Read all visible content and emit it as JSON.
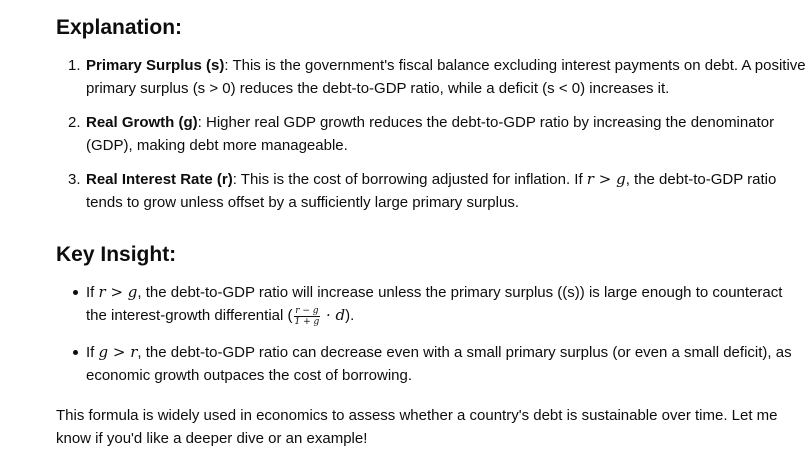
{
  "explanation": {
    "heading": "Explanation:",
    "items": [
      {
        "number": "1.",
        "term": "Primary Surplus (s)",
        "line1_rest": ": This is the government's fiscal balance excluding interest payments on debt. A positive",
        "line2": "primary surplus (s > 0) reduces the debt-to-GDP ratio, while a deficit (s < 0) increases it."
      },
      {
        "number": "2.",
        "term": "Real Growth (g)",
        "line1_rest": ": Higher real GDP growth reduces the debt-to-GDP ratio by increasing the denominator",
        "line2": "(GDP), making debt more manageable."
      },
      {
        "number": "3.",
        "term": "Real Interest Rate (r)",
        "line1_pre": ": This is the cost of borrowing adjusted for inflation. If ",
        "math": "r > g",
        "line1_post": ", the debt-to-GDP ratio",
        "line2": "tends to grow unless offset by a sufficiently large primary surplus."
      }
    ]
  },
  "key_insight": {
    "heading": "Key Insight:",
    "bullets": [
      {
        "pre": "If ",
        "math": "r > g",
        "line1_post": ", the debt-to-GDP ratio will increase unless the primary surplus ((s)) is large enough to counteract",
        "line2_pre": "the interest-growth differential (",
        "frac_num": "r − g",
        "frac_den": "1 + g",
        "line2_math": " · d",
        "line2_post": ")."
      },
      {
        "pre": "If ",
        "math": "g > r",
        "line1_post": ", the debt-to-GDP ratio can decrease even with a small primary surplus (or even a small deficit), as",
        "line2": "economic growth outpaces the cost of borrowing."
      }
    ]
  },
  "closing": {
    "line1": "This formula is widely used in economics to assess whether a country's debt is sustainable over time. Let me",
    "line2": "know if you'd like a deeper dive or an example!"
  }
}
